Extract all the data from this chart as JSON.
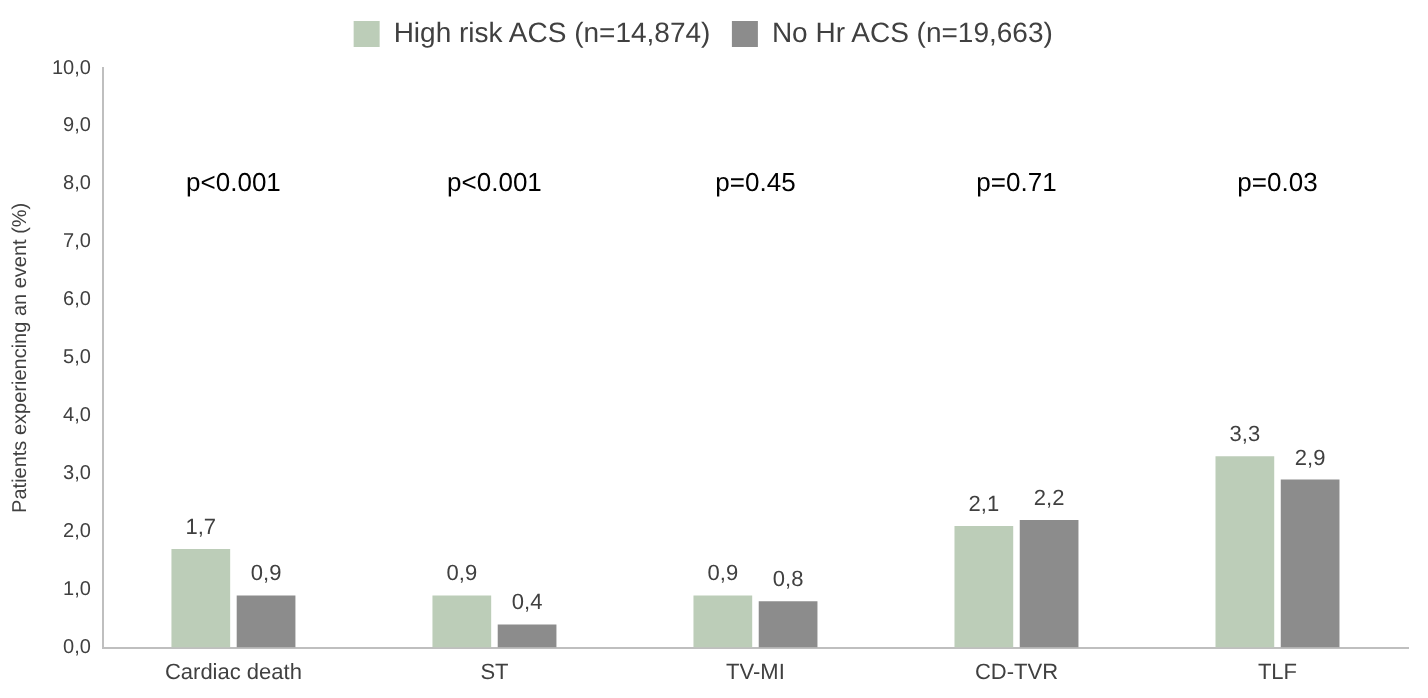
{
  "chart_data": {
    "type": "bar",
    "ylabel": "Patients experiencing an event (%)",
    "categories": [
      "Cardiac death",
      "ST",
      "TV-MI",
      "CD-TVR",
      "TLF"
    ],
    "series": [
      {
        "name": "High risk ACS (n=14,874)",
        "color": "#bccdb8",
        "values": [
          1.7,
          0.9,
          0.9,
          2.1,
          3.3
        ],
        "value_labels": [
          "1,7",
          "0,9",
          "0,9",
          "2,1",
          "3,3"
        ]
      },
      {
        "name": "No Hr ACS (n=19,663)",
        "color": "#8c8c8c",
        "values": [
          0.9,
          0.4,
          0.8,
          2.2,
          2.9
        ],
        "value_labels": [
          "0,9",
          "0,4",
          "0,8",
          "2,2",
          "2,9"
        ]
      }
    ],
    "ylim": [
      0,
      10
    ],
    "yticks": [
      {
        "value": 0,
        "label": "0,0"
      },
      {
        "value": 1,
        "label": "1,0"
      },
      {
        "value": 2,
        "label": "2,0"
      },
      {
        "value": 3,
        "label": "3,0"
      },
      {
        "value": 4,
        "label": "4,0"
      },
      {
        "value": 5,
        "label": "5,0"
      },
      {
        "value": 6,
        "label": "6,0"
      },
      {
        "value": 7,
        "label": "7,0"
      },
      {
        "value": 8,
        "label": "8,0"
      },
      {
        "value": 9,
        "label": "9,0"
      },
      {
        "value": 10,
        "label": "10,0"
      }
    ],
    "grid": false,
    "legend": "top",
    "annotations": [
      "p<0.001",
      "p<0.001",
      "p=0.45",
      "p=0.71",
      "p=0.03"
    ]
  }
}
